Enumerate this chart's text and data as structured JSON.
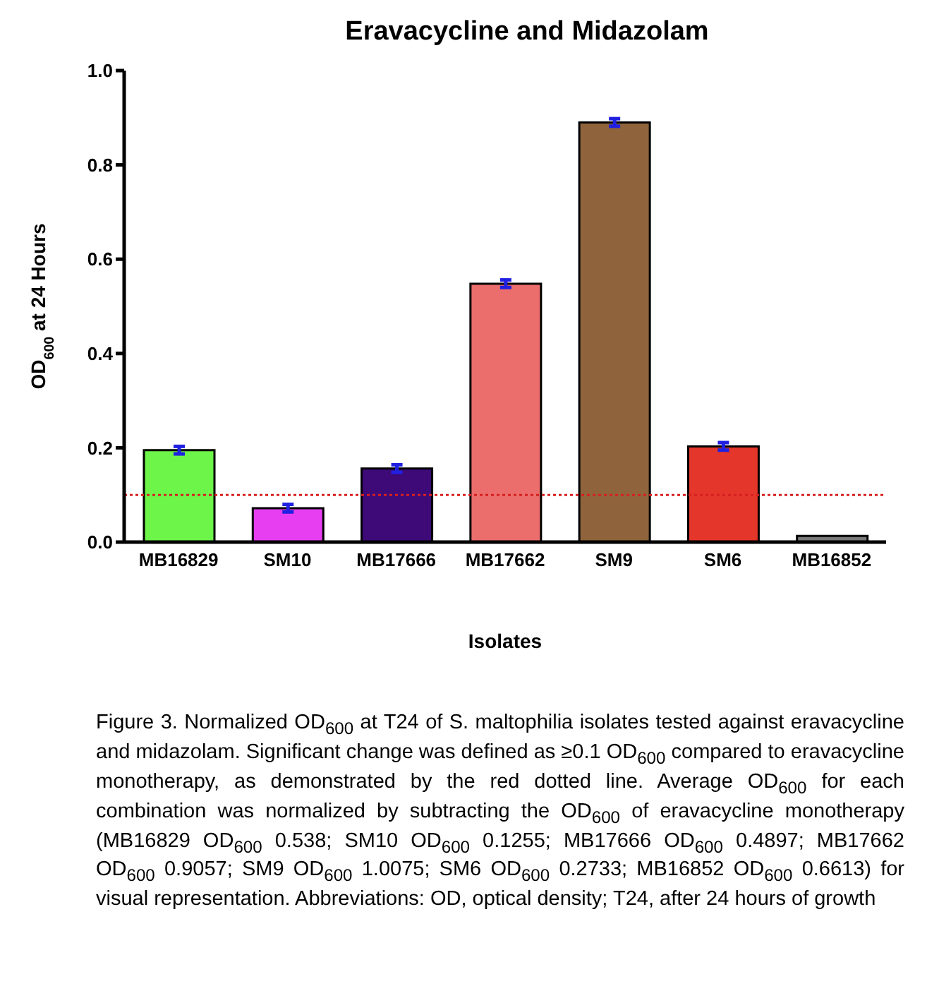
{
  "chart_data": {
    "type": "bar",
    "title": "Eravacycline and Midazolam",
    "xlabel": "Isolates",
    "ylabel": "OD$_{600}$ at 24 Hours",
    "categories": [
      "MB16829",
      "SM10",
      "MB17666",
      "MB17662",
      "SM9",
      "SM6",
      "MB16852"
    ],
    "values": [
      0.195,
      0.072,
      0.156,
      0.548,
      0.89,
      0.203,
      0.013
    ],
    "colors": [
      "#6ef54a",
      "#e63ef0",
      "#3d0a78",
      "#eb6e6c",
      "#8f643c",
      "#e4362a",
      "#7a7a7a"
    ],
    "errors": [
      0.008,
      0.008,
      0.008,
      0.008,
      0.008,
      0.008,
      null
    ],
    "ylim": [
      0,
      1
    ],
    "yticks": [
      {
        "value": 0,
        "label": "0.0"
      },
      {
        "value": 0.2,
        "label": "0.2"
      },
      {
        "value": 0.4,
        "label": "0.4"
      },
      {
        "value": 0.6,
        "label": "0.6"
      },
      {
        "value": 0.8,
        "label": "0.8"
      },
      {
        "value": 1,
        "label": "1.0"
      }
    ],
    "ref_lines": [
      {
        "axis": "y",
        "value": 0.1,
        "color": "#d62020",
        "line_style": "dotted"
      }
    ],
    "grid": false,
    "legend": false,
    "annotations": [
      "Figure 3. Normalized OD$_{600}$ at T24 of S. maltophilia isolates tested against eravacycline and midazolam. Significant change was defined as ≥0.1 OD$_{600}$ compared to eravacycline monotherapy, as demonstrated by the red dotted line. Average OD$_{600}$ for each combination was normalized by subtracting the OD$_{600}$ of eravacycline monotherapy (MB16829 OD$_{600}$ 0.538; SM10 OD$_{600}$ 0.1255; MB17666 OD$_{600}$ 0.4897; MB17662 OD$_{600}$ 0.9057; SM9 OD$_{600}$ 1.0075; SM6 OD$_{600}$ 0.2733; MB16852 OD$_{600}$ 0.6613) for visual representation. Abbreviations: OD, optical density; T24, after 24 hours of growth"
    ]
  }
}
